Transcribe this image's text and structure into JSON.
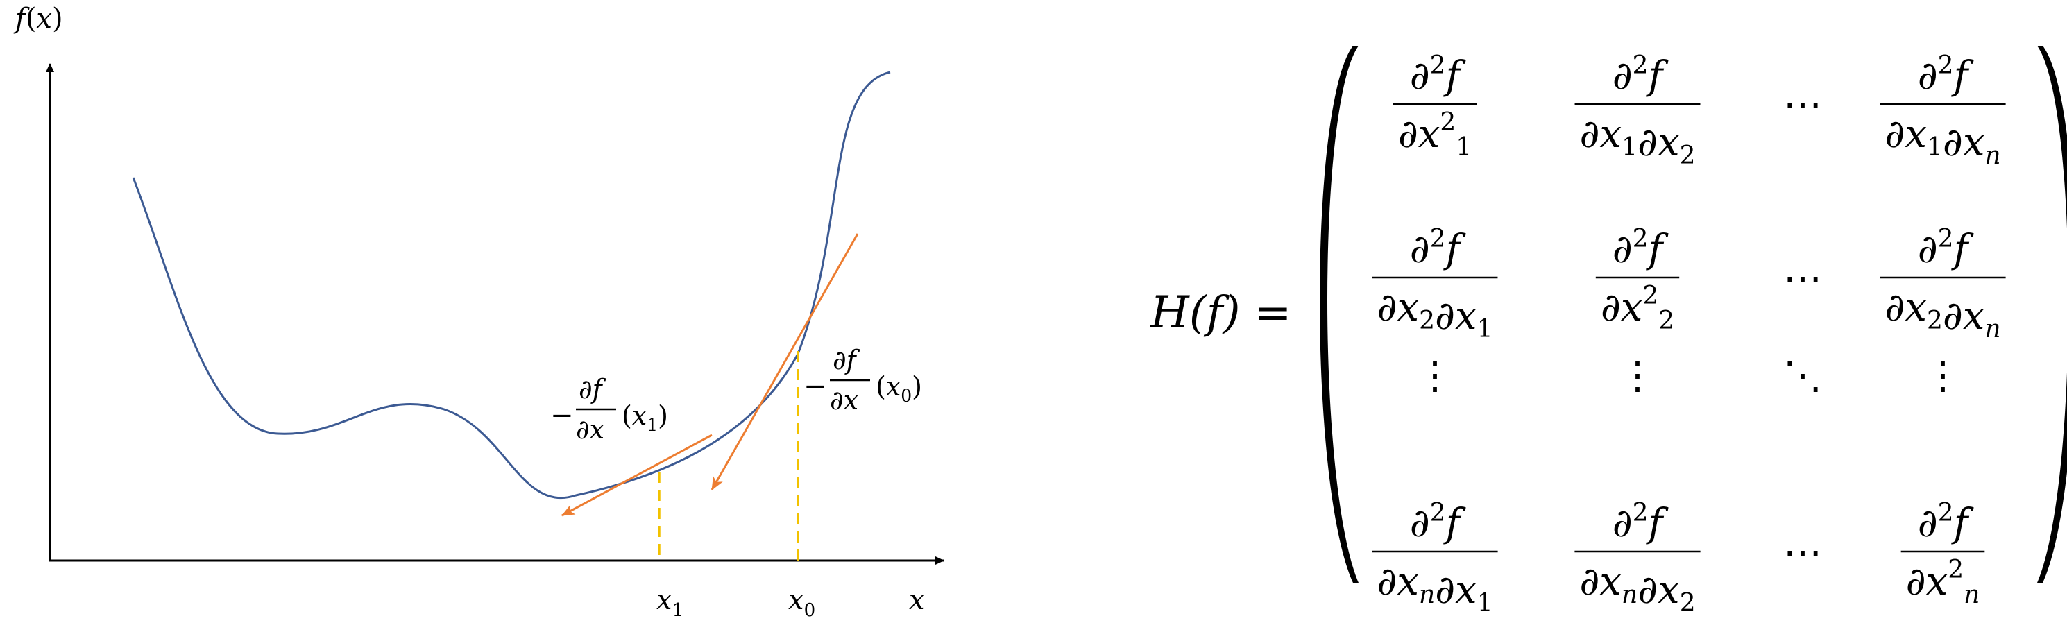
{
  "graph": {
    "y_axis_label": {
      "f": "f",
      "open": "(",
      "x": "x",
      "close": ")"
    },
    "x_axis_label": "x",
    "x0_label": {
      "base": "x",
      "sub": "0"
    },
    "x1_label": {
      "base": "x",
      "sub": "1"
    },
    "grad_x0": {
      "minus": "−",
      "num": "∂f",
      "den": "∂x",
      "arg": {
        "open": "(",
        "base": "x",
        "sub": "0",
        "close": ")"
      }
    },
    "grad_x1": {
      "minus": "−",
      "num": "∂f",
      "den": "∂x",
      "arg": {
        "open": "(",
        "base": "x",
        "sub": "1",
        "close": ")"
      }
    },
    "colors": {
      "curve": "#3c5a93",
      "arrow": "#ed7d31",
      "dashed": "#f2c200",
      "axis": "#000000"
    }
  },
  "hessian": {
    "lhs": "H(f) =",
    "dots": {
      "h": "⋯",
      "v": "⋮",
      "d": "⋱"
    },
    "rows": [
      [
        {
          "type": "frac",
          "num": {
            "p": "∂",
            "sup": "2",
            "v": "f"
          },
          "den": [
            {
              "p": "∂",
              "v": "x",
              "sub": "1",
              "sup": "2"
            }
          ]
        },
        {
          "type": "frac",
          "num": {
            "p": "∂",
            "sup": "2",
            "v": "f"
          },
          "den": [
            {
              "p": "∂",
              "v": "x",
              "sub": "1"
            },
            {
              "p": "∂",
              "v": "x",
              "sub": "2"
            }
          ]
        },
        {
          "type": "hdots"
        },
        {
          "type": "frac",
          "num": {
            "p": "∂",
            "sup": "2",
            "v": "f"
          },
          "den": [
            {
              "p": "∂",
              "v": "x",
              "sub": "1"
            },
            {
              "p": "∂",
              "v": "x",
              "sub": "n"
            }
          ]
        }
      ],
      [
        {
          "type": "frac",
          "num": {
            "p": "∂",
            "sup": "2",
            "v": "f"
          },
          "den": [
            {
              "p": "∂",
              "v": "x",
              "sub": "2"
            },
            {
              "p": "∂",
              "v": "x",
              "sub": "1"
            }
          ]
        },
        {
          "type": "frac",
          "num": {
            "p": "∂",
            "sup": "2",
            "v": "f"
          },
          "den": [
            {
              "p": "∂",
              "v": "x",
              "sub": "2",
              "sup": "2"
            }
          ]
        },
        {
          "type": "hdots"
        },
        {
          "type": "frac",
          "num": {
            "p": "∂",
            "sup": "2",
            "v": "f"
          },
          "den": [
            {
              "p": "∂",
              "v": "x",
              "sub": "2"
            },
            {
              "p": "∂",
              "v": "x",
              "sub": "n"
            }
          ]
        }
      ],
      [
        {
          "type": "vdots"
        },
        {
          "type": "vdots"
        },
        {
          "type": "ddots"
        },
        {
          "type": "vdots"
        }
      ],
      [
        {
          "type": "frac",
          "num": {
            "p": "∂",
            "sup": "2",
            "v": "f"
          },
          "den": [
            {
              "p": "∂",
              "v": "x",
              "sub": "n"
            },
            {
              "p": "∂",
              "v": "x",
              "sub": "1"
            }
          ]
        },
        {
          "type": "frac",
          "num": {
            "p": "∂",
            "sup": "2",
            "v": "f"
          },
          "den": [
            {
              "p": "∂",
              "v": "x",
              "sub": "n"
            },
            {
              "p": "∂",
              "v": "x",
              "sub": "2"
            }
          ]
        },
        {
          "type": "hdots"
        },
        {
          "type": "frac",
          "num": {
            "p": "∂",
            "sup": "2",
            "v": "f"
          },
          "den": [
            {
              "p": "∂",
              "v": "x",
              "sub": "n",
              "sup": "2"
            }
          ]
        }
      ]
    ]
  }
}
